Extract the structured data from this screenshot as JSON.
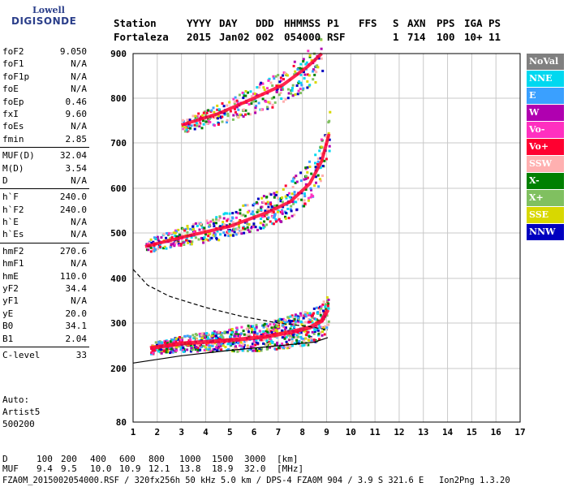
{
  "logo": {
    "line1": "Lowell",
    "line2": "DIGISONDE"
  },
  "header": {
    "row1": [
      "Station",
      "YYYY",
      "DAY",
      "DDD",
      "HHMMSS",
      "P1",
      "FFS",
      "S",
      "AXN",
      "PPS",
      "IGA",
      "PS"
    ],
    "row2": [
      "Fortaleza",
      "2015",
      "Jan02",
      "002",
      "054000",
      "RSF",
      "",
      "1",
      "714",
      "100",
      "10+",
      "11"
    ]
  },
  "params_groups": [
    [
      {
        "k": "foF2",
        "v": "9.050"
      },
      {
        "k": "foF1",
        "v": "N/A"
      },
      {
        "k": "foF1p",
        "v": "N/A"
      },
      {
        "k": "foE",
        "v": "N/A"
      },
      {
        "k": "foEp",
        "v": "0.46"
      },
      {
        "k": "fxI",
        "v": "9.60"
      },
      {
        "k": "foEs",
        "v": "N/A"
      },
      {
        "k": "fmin",
        "v": "2.85"
      }
    ],
    [
      {
        "k": "MUF(D)",
        "v": "32.04"
      },
      {
        "k": "M(D)",
        "v": "3.54"
      },
      {
        "k": "D",
        "v": "N/A"
      }
    ],
    [
      {
        "k": "h`F",
        "v": "240.0"
      },
      {
        "k": "h`F2",
        "v": "240.0"
      },
      {
        "k": "h`E",
        "v": "N/A"
      },
      {
        "k": "h`Es",
        "v": "N/A"
      }
    ],
    [
      {
        "k": "hmF2",
        "v": "270.6"
      },
      {
        "k": "hmF1",
        "v": "N/A"
      },
      {
        "k": "hmE",
        "v": "110.0"
      },
      {
        "k": "yF2",
        "v": "34.4"
      },
      {
        "k": "yF1",
        "v": "N/A"
      },
      {
        "k": "yE",
        "v": "20.0"
      },
      {
        "k": "B0",
        "v": "34.1"
      },
      {
        "k": "B1",
        "v": "2.04"
      }
    ],
    [
      {
        "k": "C-level",
        "v": "33"
      }
    ]
  ],
  "auto": {
    "line1": "Auto:",
    "line2": "Artist5",
    "line3": "500200"
  },
  "legend": [
    {
      "label": "NoVal",
      "color": "#808080"
    },
    {
      "label": "NNE",
      "color": "#00d8f0"
    },
    {
      "label": "E",
      "color": "#3aa0ff"
    },
    {
      "label": "W",
      "color": "#b000b0"
    },
    {
      "label": "Vo-",
      "color": "#ff30c0"
    },
    {
      "label": "Vo+",
      "color": "#ff0030"
    },
    {
      "label": "SSW",
      "color": "#ffb0b0"
    },
    {
      "label": "X-",
      "color": "#008000"
    },
    {
      "label": "X+",
      "color": "#80c060"
    },
    {
      "label": "SSE",
      "color": "#d8d800"
    },
    {
      "label": "NNW",
      "color": "#0000c0"
    }
  ],
  "chart_data": {
    "type": "scatter",
    "x_ticks": [
      1,
      2,
      3,
      4,
      5,
      6,
      7,
      8,
      9,
      10,
      11,
      12,
      13,
      14,
      15,
      16,
      17
    ],
    "y_ticks": [
      80,
      200,
      300,
      400,
      500,
      600,
      700,
      800,
      900
    ],
    "xlim": [
      1,
      17
    ],
    "ylim_note": "nonlinear height axis, 80 at bottom to 900 at top",
    "grid": true,
    "traces": [
      {
        "name": "F-layer O trace",
        "points": [
          [
            1.7,
            245
          ],
          [
            3,
            255
          ],
          [
            5,
            262
          ],
          [
            6.5,
            270
          ],
          [
            7.5,
            280
          ],
          [
            8.3,
            290
          ],
          [
            8.8,
            305
          ],
          [
            9.05,
            330
          ]
        ]
      },
      {
        "name": "second hop",
        "points": [
          [
            1.5,
            470
          ],
          [
            3,
            490
          ],
          [
            5,
            515
          ],
          [
            6.5,
            545
          ],
          [
            7.5,
            570
          ],
          [
            8.3,
            610
          ],
          [
            8.8,
            660
          ],
          [
            9.1,
            720
          ]
        ]
      },
      {
        "name": "third hop",
        "points": [
          [
            3,
            740
          ],
          [
            4.5,
            765
          ],
          [
            6,
            800
          ],
          [
            7.2,
            830
          ],
          [
            8.2,
            870
          ],
          [
            8.8,
            900
          ]
        ]
      }
    ],
    "model_profile_dashed": [
      [
        1,
        420
      ],
      [
        1.6,
        385
      ],
      [
        2.5,
        360
      ],
      [
        4,
        335
      ],
      [
        5.5,
        315
      ],
      [
        7,
        300
      ],
      [
        8.3,
        292
      ],
      [
        9.05,
        285
      ]
    ],
    "model_profile_solid": [
      [
        1,
        212
      ],
      [
        3,
        228
      ],
      [
        5,
        240
      ],
      [
        7,
        250
      ],
      [
        8.5,
        258
      ],
      [
        9.05,
        268
      ]
    ]
  },
  "footer": {
    "d_label": "D",
    "d_values": [
      "100",
      "200",
      "400",
      "600",
      "800",
      "1000",
      "1500",
      "3000",
      "[km]"
    ],
    "muf_label": "MUF",
    "muf_values": [
      "9.4",
      "9.5",
      "10.0",
      "10.9",
      "12.1",
      "13.8",
      "18.9",
      "32.0",
      "[MHz]"
    ],
    "info": "FZA0M_2015002054000.RSF / 320fx256h 50 kHz 5.0 km / DPS-4 FZA0M 904 / 3.9 S 321.6 E   Ion2Png 1.3.20"
  }
}
